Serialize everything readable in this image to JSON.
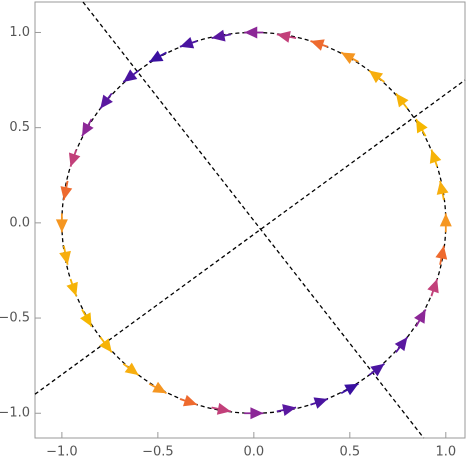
{
  "chart_data": {
    "type": "vector",
    "x": [
      1,
      0.98,
      0.94,
      0.87,
      0.77,
      0.64,
      0.5,
      0.34,
      0.17,
      0,
      -0.17,
      -0.34,
      -0.5,
      -0.64,
      -0.77,
      -0.87,
      -0.94,
      -0.98,
      -1,
      -0.98,
      -0.94,
      -0.87,
      -0.77,
      -0.64,
      -0.5,
      -0.34,
      -0.17,
      0,
      0.17,
      0.34,
      0.5,
      0.64,
      0.77,
      0.87,
      0.94,
      0.98
    ],
    "y": [
      0,
      0.17,
      0.34,
      0.5,
      0.64,
      0.77,
      0.87,
      0.94,
      0.98,
      1,
      0.98,
      0.94,
      0.87,
      0.77,
      0.64,
      0.5,
      0.34,
      0.17,
      0,
      -0.17,
      -0.34,
      -0.5,
      -0.64,
      -0.77,
      -0.87,
      -0.94,
      -0.98,
      -1,
      -0.98,
      -0.94,
      -0.87,
      -0.77,
      -0.64,
      -0.5,
      -0.34,
      -0.17
    ],
    "u": [
      0,
      -0.02,
      -0.03,
      -0.05,
      -0.06,
      -0.08,
      -0.09,
      -0.09,
      -0.1,
      -0.1,
      -0.1,
      -0.09,
      -0.09,
      -0.08,
      -0.06,
      -0.05,
      -0.03,
      -0.02,
      0,
      0.02,
      0.03,
      0.05,
      0.06,
      0.08,
      0.09,
      0.09,
      0.1,
      0.1,
      0.1,
      0.09,
      0.09,
      0.08,
      0.06,
      0.05,
      0.03,
      0.02
    ],
    "v": [
      0.1,
      0.1,
      0.09,
      0.09,
      0.08,
      0.06,
      0.05,
      0.03,
      0.02,
      0,
      -0.02,
      -0.03,
      -0.05,
      -0.06,
      -0.08,
      -0.09,
      -0.09,
      -0.1,
      -0.1,
      -0.1,
      -0.09,
      -0.09,
      -0.08,
      -0.06,
      -0.05,
      -0.03,
      -0.02,
      0,
      0.02,
      0.03,
      0.05,
      0.06,
      0.08,
      0.09,
      0.09,
      0.1
    ],
    "c": [
      0.5,
      0.8,
      0.9,
      1,
      0.9,
      0.8,
      0.5,
      0.2,
      -0.2,
      -0.5,
      -0.8,
      -0.9,
      -1,
      -0.9,
      -0.8,
      -0.5,
      -0.2,
      0.2,
      0.5,
      0.8,
      0.9,
      1,
      0.9,
      0.8,
      0.5,
      0.2,
      -0.2,
      -0.5,
      -0.8,
      -0.9,
      -1,
      -0.9,
      -0.8,
      -0.5,
      -0.2,
      0.2
    ],
    "colormap": [
      "#3a10a0",
      "#7a1fa0",
      "#c2407a",
      "#ee6a2e",
      "#f7a51c",
      "#f6b700"
    ],
    "circle_radius": 1,
    "lines": [
      {
        "x": [
          -0.89,
          0.885
        ],
        "y": [
          1.16,
          -1.13
        ]
      },
      {
        "x": [
          -1.14,
          1.1
        ],
        "y": [
          -0.9,
          0.75
        ]
      }
    ],
    "xlim": [
      -1.14,
      1.1
    ],
    "ylim": [
      -1.13,
      1.16
    ],
    "xticks": [
      {
        "value": -1,
        "label": "−1.0"
      },
      {
        "value": -0.5,
        "label": "−0.5"
      },
      {
        "value": 0,
        "label": "0.0"
      },
      0.5,
      {
        "value": 1,
        "label": "1.0"
      }
    ],
    "yticks": [
      {
        "value": -1,
        "label": "−1.0"
      },
      {
        "value": -0.5,
        "label": "−0.5"
      },
      {
        "value": 0,
        "label": "0.0"
      },
      0.5,
      {
        "value": 1,
        "label": "1.0"
      }
    ]
  }
}
